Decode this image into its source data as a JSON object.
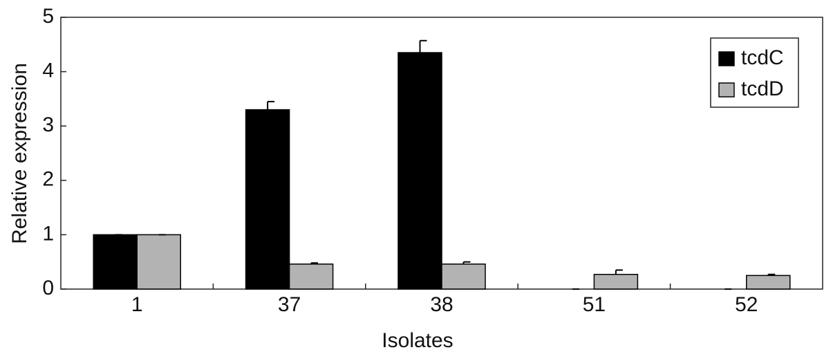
{
  "chart_data": {
    "type": "bar",
    "xlabel": "Isolates",
    "ylabel": "Relative expression",
    "categories": [
      "1",
      "37",
      "38",
      "51",
      "52"
    ],
    "series": [
      {
        "name": "tcdC",
        "color": "#000000",
        "values": [
          1,
          3.3,
          4.35,
          0,
          0
        ],
        "errors": [
          0,
          0.15,
          0.22,
          0,
          0
        ]
      },
      {
        "name": "tcdD",
        "color": "#b3b3b3",
        "values": [
          1,
          0.46,
          0.46,
          0.27,
          0.25
        ],
        "errors": [
          0,
          0.02,
          0.04,
          0.08,
          0.02
        ]
      }
    ],
    "ylim": [
      0,
      5
    ],
    "yticks": [
      0,
      1,
      2,
      3,
      4,
      5
    ],
    "grid": false,
    "legend": "upper right"
  }
}
